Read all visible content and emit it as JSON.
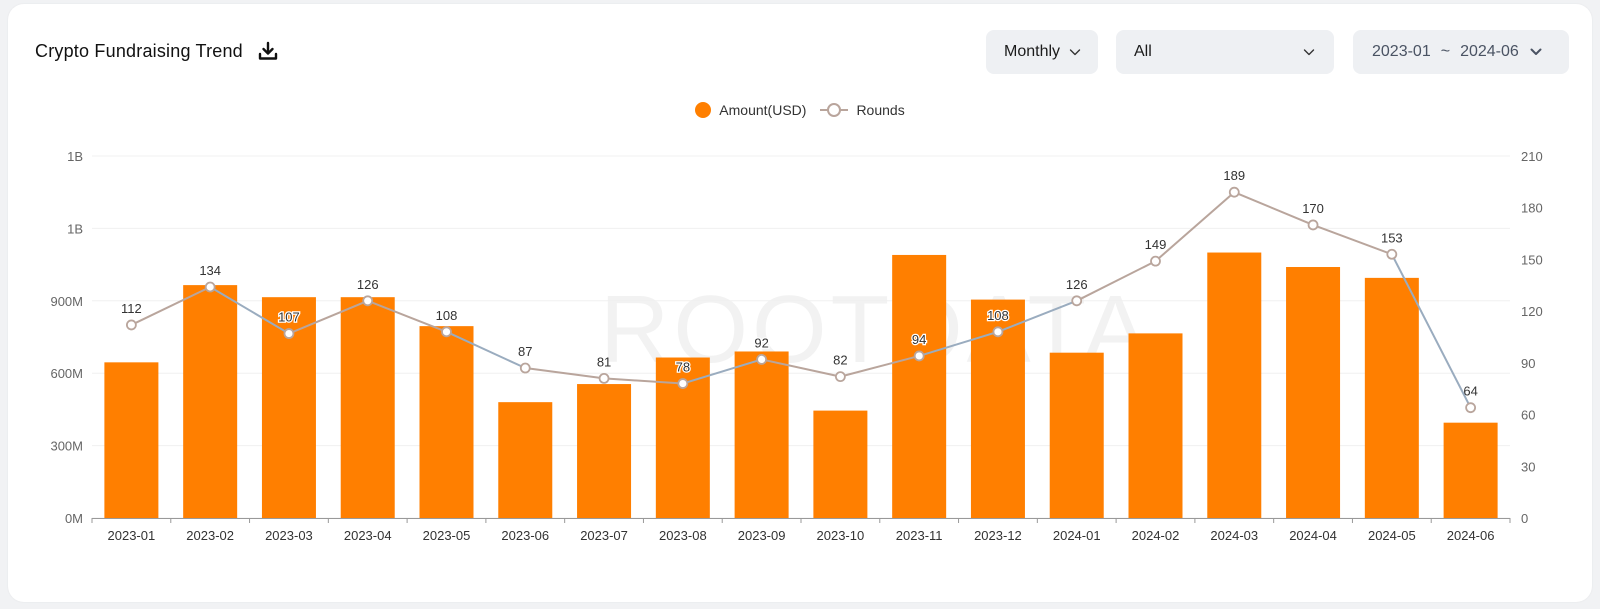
{
  "header": {
    "title": "Crypto Fundraising Trend",
    "period_label": "Monthly",
    "category_label": "All",
    "range_start": "2023-01",
    "range_sep": "~",
    "range_end": "2024-06"
  },
  "watermark": "ROOTDATA",
  "colors": {
    "bar": "#ff7f00",
    "line": "#b9a59c",
    "line_segment_alt": "#9aacbf",
    "marker_fill": "#ffffff",
    "grid": "#f0f0f0"
  },
  "chart_data": {
    "type": "bar+line",
    "categories": [
      "2023-01",
      "2023-02",
      "2023-03",
      "2023-04",
      "2023-05",
      "2023-06",
      "2023-07",
      "2023-08",
      "2023-09",
      "2023-10",
      "2023-11",
      "2023-12",
      "2024-01",
      "2024-02",
      "2024-03",
      "2024-04",
      "2024-05",
      "2024-06"
    ],
    "series": [
      {
        "name": "Amount(USD)",
        "type": "bar",
        "axis": "left",
        "values": [
          645,
          965,
          915,
          915,
          795,
          480,
          555,
          665,
          690,
          445,
          1090,
          905,
          685,
          765,
          1100,
          1040,
          995,
          395
        ]
      },
      {
        "name": "Rounds",
        "type": "line",
        "axis": "right",
        "values": [
          112,
          134,
          107,
          126,
          108,
          87,
          81,
          78,
          92,
          82,
          94,
          108,
          126,
          149,
          189,
          170,
          153,
          64
        ]
      }
    ],
    "left_axis": {
      "ticks": [
        "0M",
        "300M",
        "600M",
        "900M",
        "1B",
        "1B"
      ],
      "ylim": [
        0,
        1500
      ]
    },
    "right_axis": {
      "ticks": [
        "0",
        "30",
        "60",
        "90",
        "120",
        "150",
        "180",
        "210"
      ],
      "ylim": [
        0,
        210
      ]
    },
    "legend_position": "top-center",
    "grid": true
  }
}
